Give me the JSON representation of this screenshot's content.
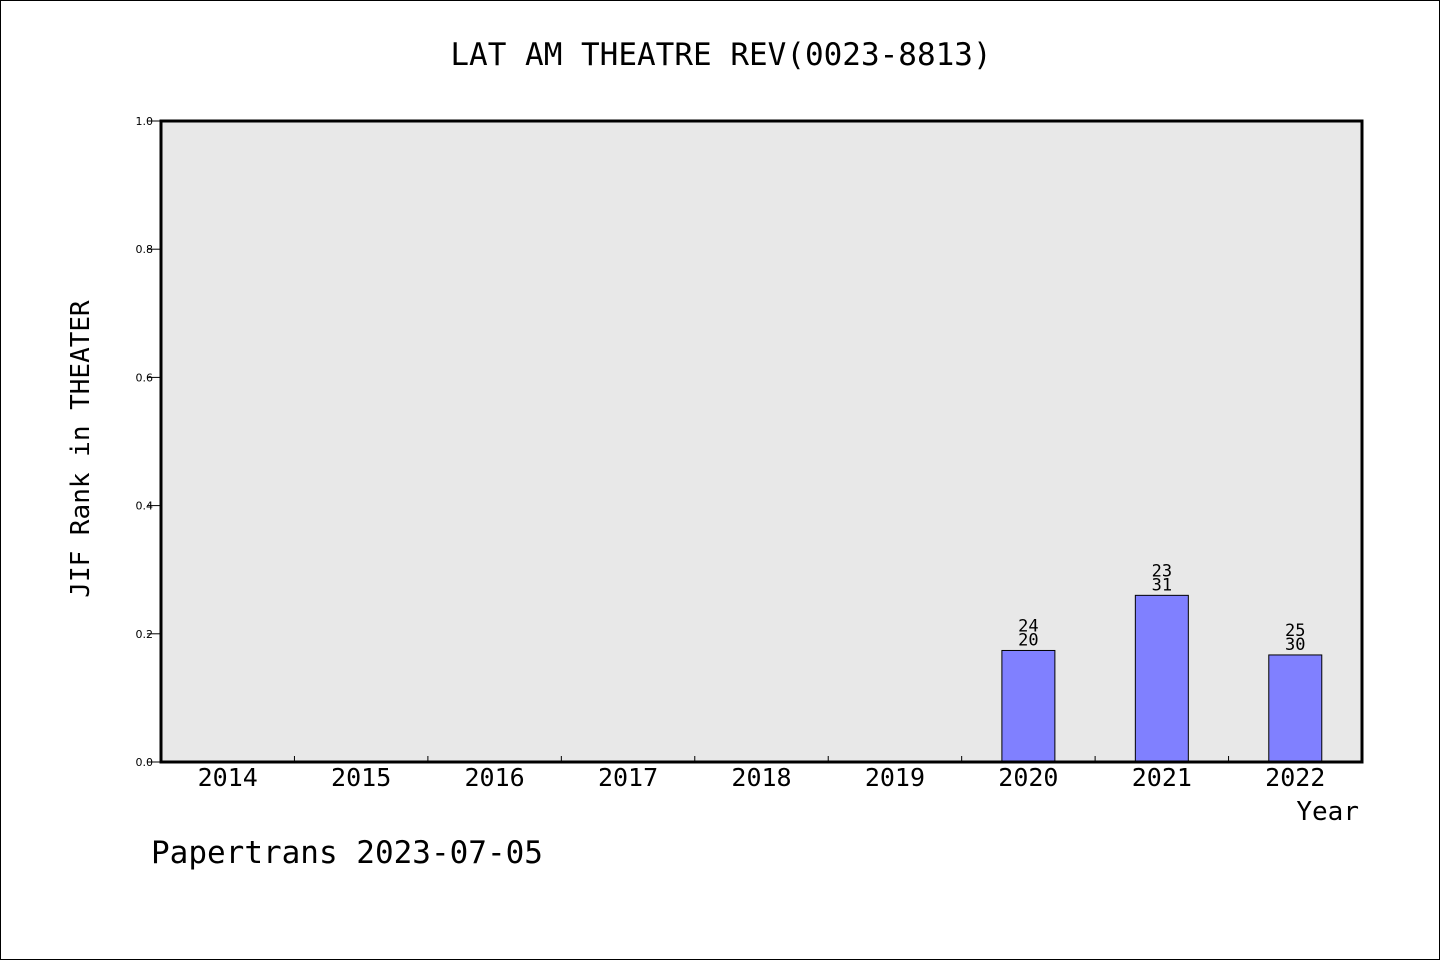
{
  "chart_data": {
    "type": "bar",
    "title": "LAT AM THEATRE REV(0023-8813)",
    "xlabel": "Year",
    "ylabel": "JIF Rank in THEATER",
    "categories": [
      "2014",
      "2015",
      "2016",
      "2017",
      "2018",
      "2019",
      "2020",
      "2021",
      "2022"
    ],
    "values": [
      null,
      null,
      null,
      null,
      null,
      null,
      0.174,
      0.26,
      0.167
    ],
    "bar_labels": [
      null,
      null,
      null,
      null,
      null,
      null,
      {
        "top": "24",
        "bottom": "20"
      },
      {
        "top": "23",
        "bottom": "31"
      },
      {
        "top": "25",
        "bottom": "30"
      }
    ],
    "ylim": [
      0,
      1.0
    ],
    "yticks": [
      "0.0",
      "0.2",
      "0.4",
      "0.6",
      "0.8",
      "1.0"
    ],
    "ytick_values": [
      0,
      0.2,
      0.4,
      0.6,
      0.8,
      1.0
    ],
    "grid": false,
    "colors": {
      "bar": "#8080ff",
      "plot_background": "#e8e8e8",
      "axes": "#000000"
    }
  },
  "footer": {
    "watermark": "Papertrans 2023-07-05"
  }
}
